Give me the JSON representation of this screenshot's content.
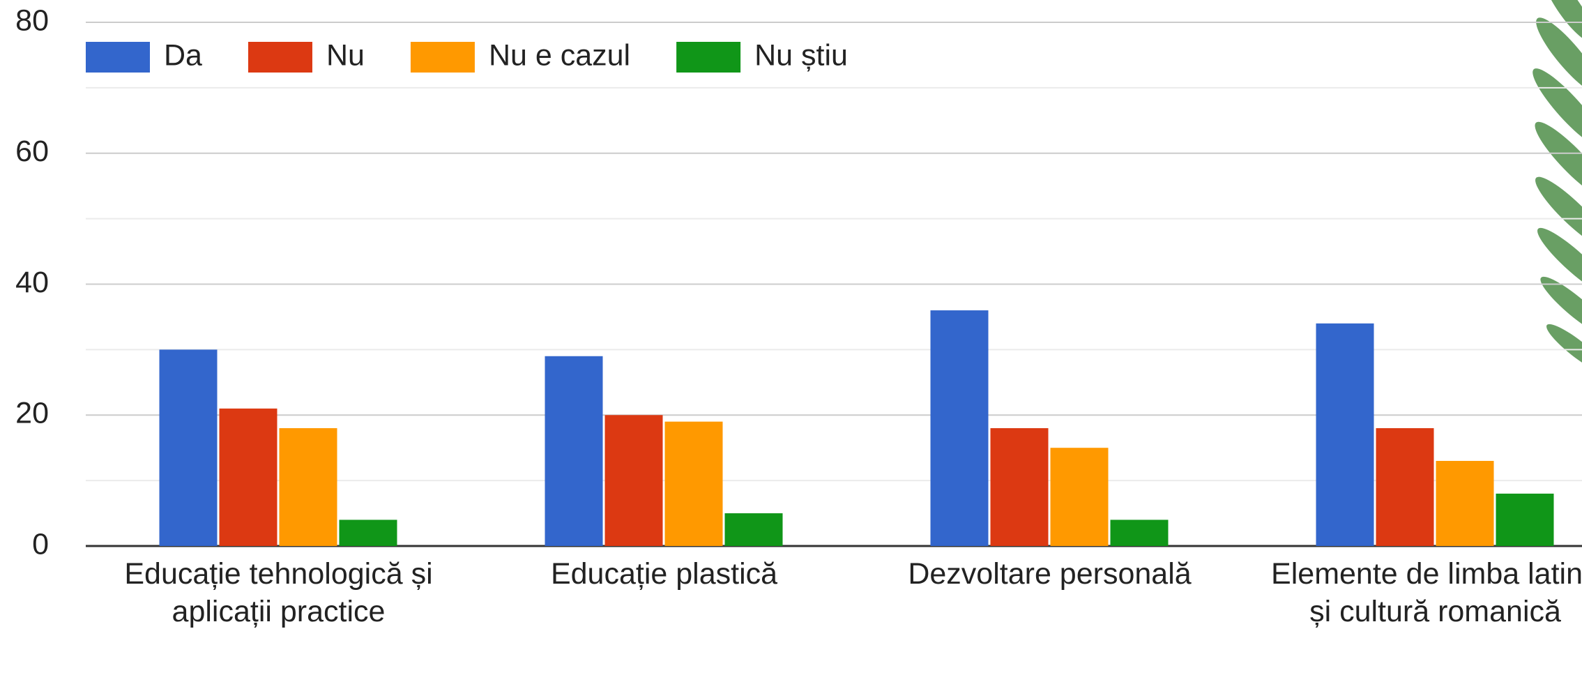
{
  "chart_data": {
    "type": "bar",
    "categories": [
      "Educație tehnologică și aplicații practice",
      "Educație plastică",
      "Dezvoltare personală",
      "Elemente de limba latină și cultură romanică"
    ],
    "series": [
      {
        "name": "Da",
        "color": "#3366cc",
        "values": [
          30,
          29,
          36,
          34
        ]
      },
      {
        "name": "Nu",
        "color": "#dc3912",
        "values": [
          21,
          20,
          18,
          18
        ]
      },
      {
        "name": "Nu e cazul",
        "color": "#ff9900",
        "values": [
          18,
          19,
          15,
          13
        ]
      },
      {
        "name": "Nu știu",
        "color": "#109618",
        "values": [
          4,
          5,
          4,
          8
        ]
      }
    ],
    "ylim": [
      0,
      80
    ],
    "yticks": [
      0,
      20,
      40,
      60,
      80
    ],
    "grid": true,
    "legend": "top"
  }
}
